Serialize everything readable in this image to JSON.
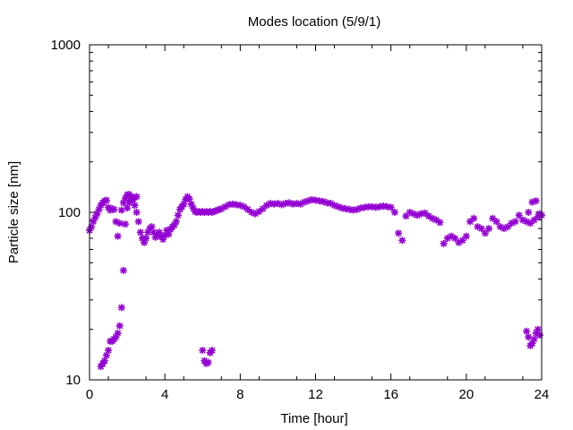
{
  "chart_data": {
    "type": "scatter",
    "title": "Modes location (5/9/1)",
    "xlabel": "Time [hour]",
    "ylabel": "Particle size [nm]",
    "xlim": [
      0,
      24
    ],
    "ylim": [
      10,
      1000
    ],
    "yscale": "log",
    "xticks": [
      0,
      4,
      8,
      12,
      16,
      20,
      24
    ],
    "xtick_labels": [
      "0",
      "4",
      "8",
      "12",
      "16",
      "20",
      "24"
    ],
    "yticks": [
      10,
      100,
      1000
    ],
    "ytick_labels": [
      "10",
      "100",
      "1000"
    ],
    "grid": false,
    "marker": "asterisk",
    "color": "#9400d3",
    "series": [
      {
        "x": [
          0.0,
          0.1,
          0.2,
          0.3,
          0.4,
          0.5,
          0.6,
          0.7,
          0.8,
          0.9,
          1.0,
          1.1,
          1.2,
          1.3,
          1.4,
          1.5,
          1.6,
          1.7,
          1.8,
          1.9,
          2.0,
          2.1,
          2.2,
          2.3,
          2.4,
          2.5,
          2.6,
          2.7,
          2.8,
          2.9,
          3.0,
          3.1,
          3.2,
          3.3,
          3.4,
          3.5,
          3.6,
          3.7,
          3.8,
          3.9,
          4.0,
          4.1,
          4.2,
          4.3,
          4.4,
          4.5,
          4.6,
          4.7,
          4.8,
          4.9,
          5.0,
          5.1,
          5.2,
          5.3,
          5.4,
          5.5,
          5.6,
          5.7,
          5.8,
          5.9,
          6.0,
          6.1,
          6.2,
          6.3,
          6.4,
          6.5,
          6.6,
          6.7,
          6.8,
          6.9,
          7.0,
          7.2,
          7.4,
          7.6,
          7.8,
          8.0,
          8.2,
          8.4,
          8.6,
          8.8,
          9.0,
          9.2,
          9.4,
          9.6,
          9.8,
          10.0,
          10.2,
          10.4,
          10.6,
          10.8,
          11.0,
          11.2,
          11.4,
          11.6,
          11.8,
          12.0,
          12.2,
          12.4,
          12.6,
          12.8,
          13.0,
          13.2,
          13.4,
          13.6,
          13.8,
          14.0,
          14.2,
          14.4,
          14.6,
          14.8,
          15.0,
          15.2,
          15.4,
          15.6,
          15.8,
          16.0,
          16.2,
          16.4,
          16.6,
          16.8,
          17.0,
          17.2,
          17.4,
          17.6,
          17.8,
          18.0,
          18.2,
          18.4,
          18.6,
          18.8,
          19.0,
          19.2,
          19.4,
          19.6,
          19.8,
          20.0,
          20.2,
          20.4,
          20.6,
          20.8,
          21.0,
          21.2,
          21.4,
          21.6,
          21.8,
          22.0,
          22.2,
          22.4,
          22.6,
          22.8,
          23.0,
          23.2,
          23.4,
          23.6,
          23.8,
          24.0
        ],
        "y": [
          78,
          82,
          88,
          93,
          98,
          104,
          110,
          114,
          117,
          118,
          107,
          103,
          105,
          104,
          88,
          72,
          86,
          103,
          114,
          121,
          127,
          128,
          124,
          119,
          110,
          100,
          88,
          76,
          70,
          66,
          70,
          76,
          80,
          82,
          76,
          71,
          74,
          76,
          72,
          69,
          73,
          78,
          74,
          79,
          82,
          84,
          88,
          96,
          104,
          108,
          112,
          119,
          124,
          120,
          112,
          106,
          101,
          100,
          101,
          100,
          101,
          100,
          101,
          100,
          101,
          100,
          101,
          102,
          103,
          104,
          105,
          108,
          111,
          112,
          111,
          110,
          108,
          104,
          100,
          98,
          101,
          105,
          110,
          113,
          112,
          113,
          111,
          113,
          114,
          112,
          113,
          112,
          115,
          117,
          119,
          118,
          117,
          116,
          114,
          113,
          110,
          108,
          106,
          105,
          104,
          103,
          104,
          106,
          107,
          108,
          108,
          107,
          108,
          109,
          108,
          107,
          100,
          75,
          68,
          95,
          100,
          98,
          96,
          98,
          99,
          95,
          92,
          90,
          87,
          65,
          70,
          72,
          70,
          66,
          68,
          72,
          88,
          92,
          82,
          80,
          75,
          80,
          92,
          88,
          82,
          80,
          82,
          86,
          88,
          96,
          90,
          88,
          86,
          90,
          94,
          96
        ]
      },
      {
        "x": [
          0.6,
          0.7,
          0.8,
          0.9,
          1.0,
          1.1,
          1.2,
          1.3,
          1.4,
          1.5,
          1.6,
          1.7,
          1.8,
          1.9,
          2.0,
          2.1,
          2.2,
          2.3,
          2.4,
          2.5
        ],
        "y": [
          12,
          12.5,
          13,
          14,
          15,
          17,
          17,
          17.5,
          18,
          19,
          21,
          27,
          45,
          85,
          106,
          114,
          118,
          121,
          123,
          124
        ]
      },
      {
        "x": [
          6.0,
          6.1,
          6.2,
          6.3,
          6.4,
          6.5
        ],
        "y": [
          15,
          13,
          12.5,
          12.7,
          14.5,
          15
        ]
      },
      {
        "x": [
          23.2,
          23.3,
          23.4,
          23.5,
          23.6,
          23.7,
          23.8,
          23.9
        ],
        "y": [
          19.5,
          18,
          16,
          16.5,
          17.5,
          19,
          20,
          18.5
        ]
      },
      {
        "x": [
          23.3,
          23.5,
          23.7,
          23.9
        ],
        "y": [
          100,
          115,
          117,
          98
        ]
      }
    ]
  }
}
